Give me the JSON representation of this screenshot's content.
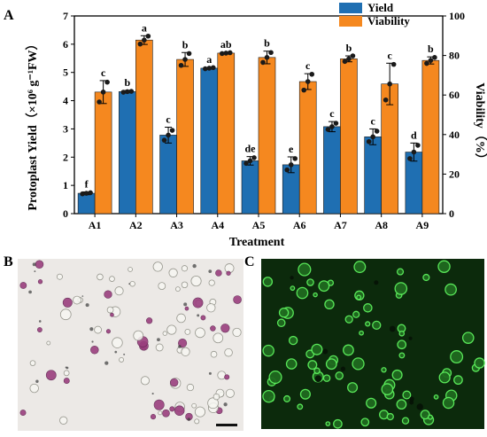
{
  "panels": {
    "a": "A",
    "b": "B",
    "c": "C"
  },
  "chart_data": {
    "type": "bar",
    "categories": [
      "A1",
      "A2",
      "A3",
      "A4",
      "A5",
      "A6",
      "A7",
      "A8",
      "A9"
    ],
    "xlabel": "Treatment",
    "ylabel_left": "Protoplast Yield（×10⁶ g⁻¹FW）",
    "ylabel_right": "Viability（%）",
    "ylim_left": [
      0,
      7
    ],
    "ylim_right": [
      0,
      100
    ],
    "yticks_left": [
      "0",
      "1",
      "2",
      "3",
      "4",
      "5",
      "6",
      "7"
    ],
    "yticks_right": [
      "0",
      "20",
      "40",
      "60",
      "80",
      "100"
    ],
    "legend_position": "top-right",
    "series": [
      {
        "name": "Yield",
        "axis": "left",
        "color": "#1f6fb2",
        "values": [
          0.72,
          4.32,
          2.78,
          5.15,
          1.87,
          1.73,
          3.08,
          2.72,
          2.18
        ],
        "errors": [
          0.05,
          0.04,
          0.28,
          0.03,
          0.15,
          0.28,
          0.18,
          0.28,
          0.32
        ],
        "points": [
          [
            0.7,
            0.72,
            0.74
          ],
          [
            4.3,
            4.32,
            4.33
          ],
          [
            2.6,
            2.78,
            2.95
          ],
          [
            5.13,
            5.15,
            5.17
          ],
          [
            1.78,
            1.87,
            1.98
          ],
          [
            1.55,
            1.73,
            1.95
          ],
          [
            2.98,
            3.08,
            3.2
          ],
          [
            2.55,
            2.72,
            2.92
          ],
          [
            1.95,
            2.18,
            2.42
          ]
        ],
        "labels": [
          "f",
          "b",
          "c",
          "a",
          "de",
          "e",
          "c",
          "c",
          "d"
        ]
      },
      {
        "name": "Viability",
        "axis": "right",
        "color": "#f5881f",
        "values": [
          61.5,
          87.8,
          78.0,
          81.2,
          79.0,
          66.8,
          78.3,
          65.6,
          77.5
        ],
        "errors": [
          5.8,
          2.2,
          3.5,
          0.4,
          3.2,
          4.0,
          1.5,
          10.5,
          1.8
        ],
        "points": [
          [
            56.5,
            61.5,
            66.5
          ],
          [
            85.8,
            87.8,
            89.8
          ],
          [
            75.0,
            78.0,
            81.0
          ],
          [
            81.0,
            81.2,
            81.4
          ],
          [
            76.5,
            79.0,
            81.5
          ],
          [
            62.5,
            66.8,
            70.5
          ],
          [
            77.0,
            78.3,
            79.8
          ],
          [
            57.5,
            65.6,
            75.5
          ],
          [
            76.0,
            77.5,
            79.0
          ]
        ],
        "labels": [
          "c",
          "a",
          "b",
          "ab",
          "b",
          "c",
          "b",
          "c",
          "b"
        ]
      }
    ]
  },
  "images": {
    "b_background": "#ece9e6",
    "b_cell_color": "#9a3f7e",
    "c_background": "#0c2a0c",
    "c_cell_color": "#5df05d",
    "scale_bar_color": "#111111"
  }
}
